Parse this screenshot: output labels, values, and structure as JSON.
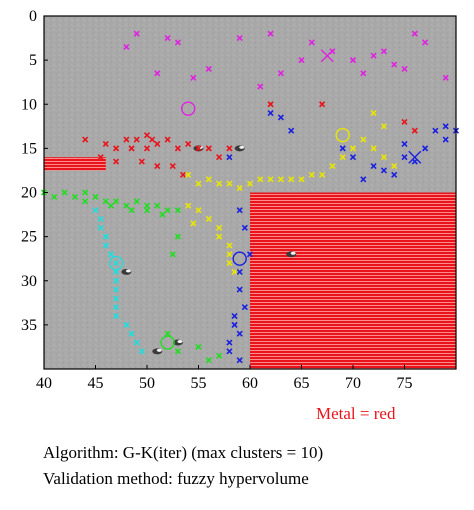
{
  "chart_data": {
    "type": "scatter",
    "xlim": [
      40,
      80
    ],
    "ylim": [
      0,
      40
    ],
    "y_inverted": true,
    "x_ticks": [
      40,
      45,
      50,
      55,
      60,
      65,
      70,
      75
    ],
    "y_ticks": [
      0,
      5,
      10,
      15,
      20,
      25,
      30,
      35
    ],
    "background": "gray sensor texture",
    "grid": false,
    "metal_regions": [
      {
        "x": [
          60,
          80
        ],
        "y": [
          20,
          40
        ],
        "color": "#e8141c"
      },
      {
        "x": [
          40,
          46
        ],
        "y": [
          16,
          17.5
        ],
        "color": "#e8141c"
      }
    ],
    "series": [
      {
        "color": "#e022e0",
        "points": [
          [
            49,
            2
          ],
          [
            52,
            2.5
          ],
          [
            53,
            3
          ],
          [
            51,
            6.5
          ],
          [
            54.5,
            7
          ],
          [
            56,
            6
          ],
          [
            62,
            2
          ],
          [
            66,
            3
          ],
          [
            68,
            4
          ],
          [
            70,
            5
          ],
          [
            71,
            6.5
          ],
          [
            72,
            4.5
          ],
          [
            74,
            5.5
          ],
          [
            76,
            2
          ],
          [
            77,
            3
          ],
          [
            79,
            7
          ],
          [
            63,
            6.5
          ],
          [
            65,
            5
          ],
          [
            59,
            2.5
          ],
          [
            48,
            3.5
          ],
          [
            61,
            8
          ],
          [
            73,
            4
          ],
          [
            75,
            6
          ]
        ],
        "centroid": [
          54,
          10.5
        ],
        "cross": [
          67.5,
          4.5
        ]
      },
      {
        "color": "#e8141c",
        "points": [
          [
            44,
            14
          ],
          [
            45.5,
            16
          ],
          [
            47,
            15
          ],
          [
            48,
            14
          ],
          [
            49,
            14
          ],
          [
            50,
            13.5
          ],
          [
            51,
            14.5
          ],
          [
            52,
            14
          ],
          [
            53,
            15
          ],
          [
            54,
            14.5
          ],
          [
            55,
            15
          ],
          [
            56,
            15
          ],
          [
            57,
            16
          ],
          [
            58,
            15
          ],
          [
            50,
            15
          ],
          [
            49.5,
            16.5
          ],
          [
            51,
            17
          ],
          [
            52.5,
            17
          ],
          [
            53.5,
            18
          ],
          [
            47,
            16.5
          ],
          [
            46,
            14.5
          ],
          [
            48.5,
            15
          ],
          [
            50.5,
            14
          ],
          [
            62,
            10
          ],
          [
            67,
            10
          ],
          [
            75,
            12
          ],
          [
            76,
            13
          ]
        ]
      },
      {
        "color": "#e8e600",
        "points": [
          [
            54,
            18
          ],
          [
            55,
            19
          ],
          [
            56,
            18.5
          ],
          [
            57,
            19
          ],
          [
            58,
            19
          ],
          [
            59,
            19.5
          ],
          [
            60,
            19
          ],
          [
            61,
            18.5
          ],
          [
            62,
            18.5
          ],
          [
            63,
            18.5
          ],
          [
            64,
            18.5
          ],
          [
            65,
            18.5
          ],
          [
            66,
            18
          ],
          [
            67,
            18
          ],
          [
            68,
            17
          ],
          [
            69,
            16
          ],
          [
            70,
            15
          ],
          [
            71,
            14
          ],
          [
            72,
            15
          ],
          [
            73,
            16
          ],
          [
            74,
            17
          ],
          [
            55,
            22
          ],
          [
            54,
            21.5
          ],
          [
            56,
            23
          ],
          [
            57,
            24
          ],
          [
            57,
            25
          ],
          [
            58,
            26
          ],
          [
            58,
            27
          ],
          [
            58,
            28
          ],
          [
            58.5,
            29
          ],
          [
            54.5,
            23.5
          ],
          [
            73,
            12.5
          ],
          [
            72,
            11
          ]
        ],
        "centroid": [
          69,
          13.5
        ]
      },
      {
        "color": "#22dd22",
        "points": [
          [
            40,
            20
          ],
          [
            41,
            20.5
          ],
          [
            42,
            20
          ],
          [
            43,
            20.5
          ],
          [
            44,
            21
          ],
          [
            45,
            20.5
          ],
          [
            46,
            21
          ],
          [
            47,
            21
          ],
          [
            48,
            21.5
          ],
          [
            49,
            21
          ],
          [
            50,
            21.5
          ],
          [
            51,
            21.5
          ],
          [
            52,
            22
          ],
          [
            53,
            22
          ],
          [
            44,
            20
          ],
          [
            46.5,
            21.5
          ],
          [
            48.5,
            22
          ],
          [
            50,
            22
          ],
          [
            51.5,
            22.5
          ],
          [
            52,
            36
          ],
          [
            53,
            38
          ],
          [
            56,
            39
          ],
          [
            57,
            38.5
          ],
          [
            55,
            37.5
          ],
          [
            52.5,
            27
          ],
          [
            53,
            25
          ]
        ],
        "centroid": [
          52,
          37
        ]
      },
      {
        "color": "#22dddd",
        "points": [
          [
            45,
            22
          ],
          [
            45.5,
            23
          ],
          [
            45.5,
            24
          ],
          [
            46,
            25
          ],
          [
            46,
            26
          ],
          [
            46.5,
            27
          ],
          [
            47,
            28
          ],
          [
            47,
            29
          ],
          [
            47,
            30
          ],
          [
            47,
            31
          ],
          [
            47,
            32
          ],
          [
            47,
            33
          ],
          [
            47,
            34
          ],
          [
            48,
            35
          ],
          [
            48.5,
            36
          ],
          [
            49,
            37
          ],
          [
            49.5,
            38
          ]
        ],
        "centroid": [
          47,
          28
        ]
      },
      {
        "color": "#1a20e0",
        "points": [
          [
            62,
            11
          ],
          [
            63,
            11.5
          ],
          [
            64,
            13
          ],
          [
            69,
            15
          ],
          [
            70,
            16
          ],
          [
            72,
            17
          ],
          [
            73,
            17.5
          ],
          [
            74,
            18
          ],
          [
            75,
            16
          ],
          [
            76,
            16.5
          ],
          [
            77,
            15
          ],
          [
            78,
            13
          ],
          [
            79,
            12.5
          ],
          [
            79,
            14
          ],
          [
            80,
            13
          ],
          [
            75,
            14.5
          ],
          [
            71,
            18.5
          ],
          [
            59,
            22
          ],
          [
            59.5,
            24
          ],
          [
            60,
            27
          ],
          [
            59,
            29
          ],
          [
            59,
            31
          ],
          [
            59.5,
            33
          ],
          [
            58.5,
            34
          ],
          [
            58.5,
            35
          ],
          [
            59,
            36
          ],
          [
            58,
            37
          ],
          [
            58,
            38
          ],
          [
            59,
            39
          ],
          [
            58,
            16
          ]
        ],
        "centroid": [
          59,
          27.5
        ],
        "cross": [
          76,
          16
        ]
      }
    ],
    "dark_blobs": [
      [
        48,
        29
      ],
      [
        55,
        15
      ],
      [
        53,
        37
      ],
      [
        64,
        27
      ],
      [
        59,
        15
      ],
      [
        51,
        38
      ]
    ]
  },
  "note": "Metal = red",
  "caption_lines": [
    "Algorithm: G-K(iter) (max clusters = 10)",
    "Validation method: fuzzy hypervolume"
  ]
}
